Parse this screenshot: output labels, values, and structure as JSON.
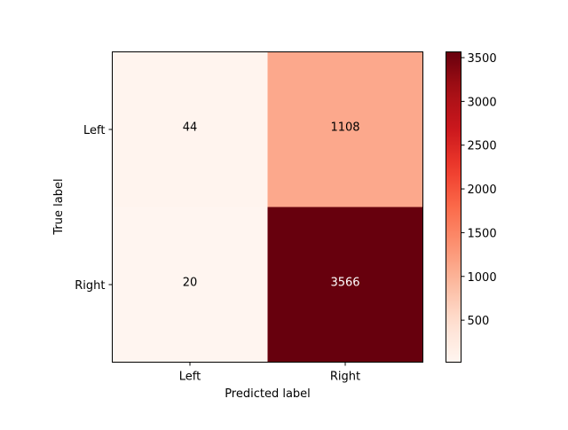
{
  "chart_data": {
    "type": "heatmap",
    "title": "",
    "xlabel": "Predicted label",
    "ylabel": "True label",
    "x_categories": [
      "Left",
      "Right"
    ],
    "y_categories": [
      "Left",
      "Right"
    ],
    "values": [
      [
        44,
        1108
      ],
      [
        20,
        3566
      ]
    ],
    "colormap": "Reds",
    "colorbar": {
      "ticks": [
        500,
        1000,
        1500,
        2000,
        2500,
        3000,
        3500
      ],
      "range": [
        20,
        3566
      ]
    },
    "grid": false
  }
}
